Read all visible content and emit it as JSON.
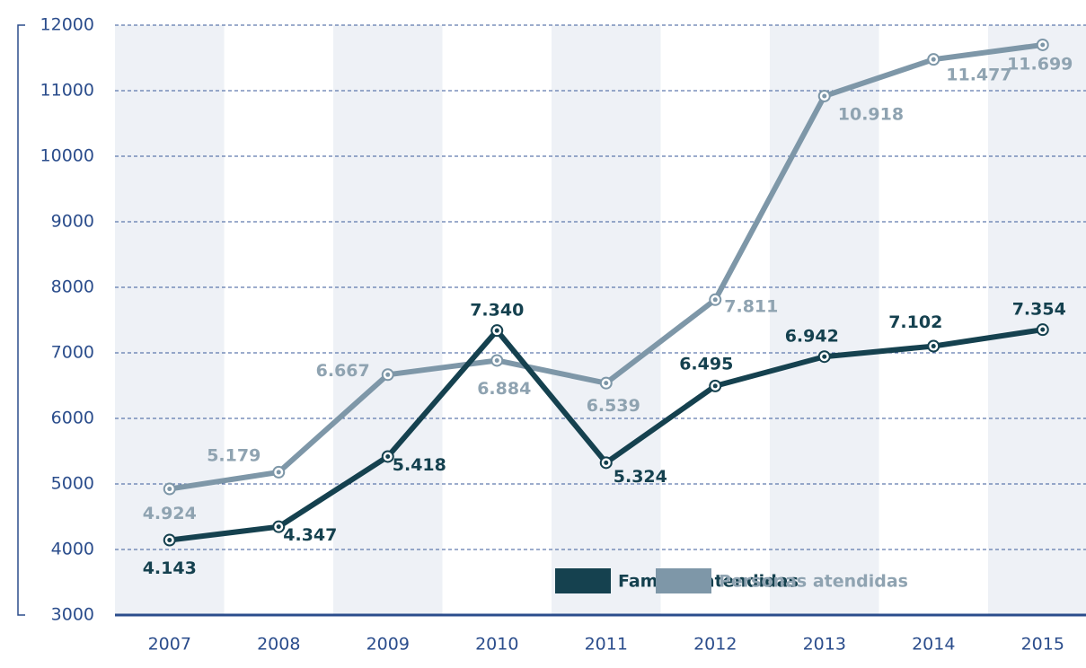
{
  "chart_data": {
    "type": "line",
    "categories": [
      "2007",
      "2008",
      "2009",
      "2010",
      "2011",
      "2012",
      "2013",
      "2014",
      "2015"
    ],
    "series": [
      {
        "name": "Familias atendidas",
        "color": "#15414f",
        "values": [
          4143,
          4347,
          5418,
          7340,
          5324,
          6495,
          6942,
          7102,
          7354
        ],
        "value_labels": [
          "4.143",
          "4.347",
          "5.418",
          "7.340",
          "5.324",
          "6.495",
          "6.942",
          "7.102",
          "7.354"
        ]
      },
      {
        "name": "Personas atendidas",
        "color": "#7e97a8",
        "values": [
          4924,
          5179,
          6667,
          6884,
          6539,
          7811,
          10918,
          11477,
          11699
        ],
        "value_labels": [
          "4.924",
          "5.179",
          "6.667",
          "6.884",
          "6.539",
          "7.811",
          "10.918",
          "11.477",
          "11.699"
        ]
      }
    ],
    "ylim": [
      3000,
      12000
    ],
    "yticks": [
      3000,
      4000,
      5000,
      6000,
      7000,
      8000,
      9000,
      10000,
      11000,
      12000
    ],
    "grid": true,
    "legend": "bottom-right"
  }
}
